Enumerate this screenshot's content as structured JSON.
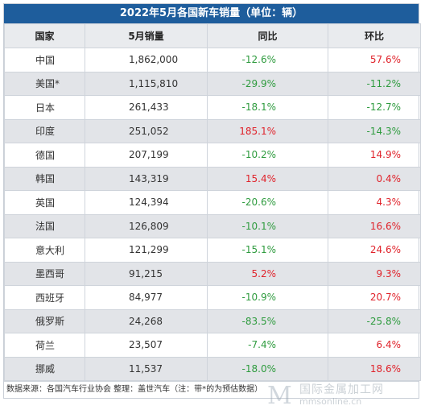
{
  "title": "2022年5月各国新车销量（单位：辆）",
  "headers": [
    "国家",
    "5月销量",
    "同比",
    "环比"
  ],
  "rows": [
    {
      "country": "中国",
      "sales": "1,862,000",
      "yoy": "-12.6%",
      "mom": "57.6%"
    },
    {
      "country": "美国*",
      "sales": "1,115,810",
      "yoy": "-29.9%",
      "mom": "-11.2%"
    },
    {
      "country": "日本",
      "sales": "261,433",
      "yoy": "-18.1%",
      "mom": "-12.7%"
    },
    {
      "country": "印度",
      "sales": "251,052",
      "yoy": "185.1%",
      "mom": "-14.3%"
    },
    {
      "country": "德国",
      "sales": "207,199",
      "yoy": "-10.2%",
      "mom": "14.9%"
    },
    {
      "country": "韩国",
      "sales": "143,319",
      "yoy": "15.4%",
      "mom": "0.4%"
    },
    {
      "country": "英国",
      "sales": "124,394",
      "yoy": "-20.6%",
      "mom": "4.3%"
    },
    {
      "country": "法国",
      "sales": "126,809",
      "yoy": "-10.1%",
      "mom": "16.6%"
    },
    {
      "country": "意大利",
      "sales": "121,299",
      "yoy": "-15.1%",
      "mom": "24.6%"
    },
    {
      "country": "墨西哥",
      "sales": "91,215",
      "yoy": "5.2%",
      "mom": "9.3%"
    },
    {
      "country": "西班牙",
      "sales": "84,977",
      "yoy": "-10.9%",
      "mom": "20.7%"
    },
    {
      "country": "俄罗斯",
      "sales": "24,268",
      "yoy": "-83.5%",
      "mom": "-25.8%"
    },
    {
      "country": "荷兰",
      "sales": "23,507",
      "yoy": "-7.4%",
      "mom": "6.4%"
    },
    {
      "country": "挪威",
      "sales": "11,537",
      "yoy": "-18.0%",
      "mom": "18.6%"
    }
  ],
  "footer": "数据来源：各国汽车行业协会 整理：盖世汽车（注：带*的为预估数据）",
  "watermark": {
    "cn": "国际金属加工网",
    "en": "mmsonline.cn"
  },
  "colors": {
    "header_bar": "#1e5d9c",
    "negative": "#2e9b3e",
    "positive": "#e0232b"
  }
}
